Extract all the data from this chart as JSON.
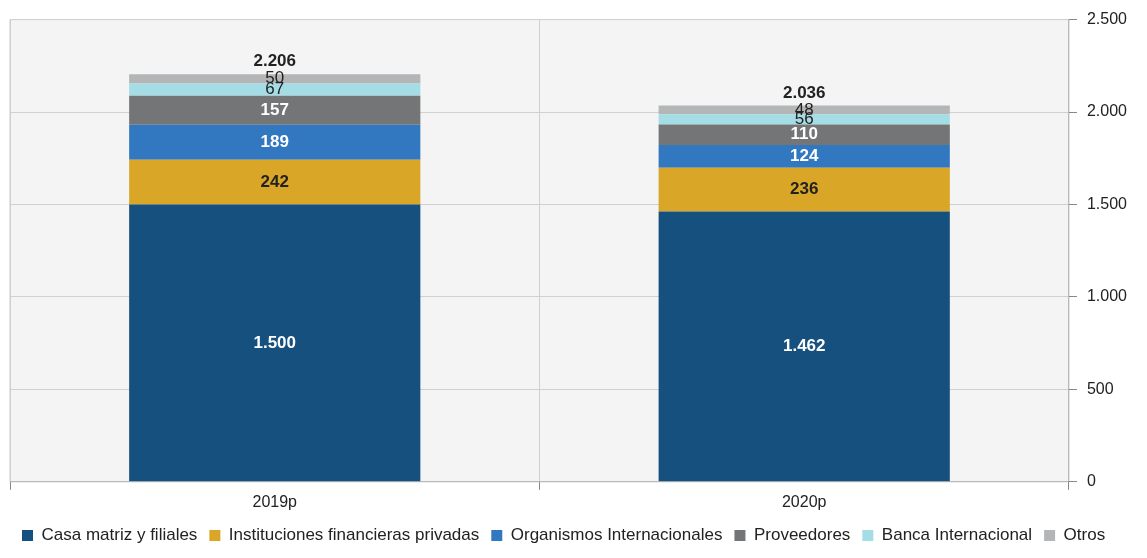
{
  "chart_data": {
    "type": "bar",
    "stacked": true,
    "categories": [
      "2019p",
      "2020p"
    ],
    "series": [
      {
        "name": "Casa matriz y filiales",
        "color": "#16507f",
        "values": [
          1500,
          1462
        ],
        "value_labels": [
          "1.500",
          "1.462"
        ]
      },
      {
        "name": "Instituciones financieras privadas",
        "color": "#d9a627",
        "values": [
          242,
          236
        ],
        "value_labels": [
          "242",
          "236"
        ]
      },
      {
        "name": "Organismos Internacionales",
        "color": "#3278c0",
        "values": [
          189,
          124
        ],
        "value_labels": [
          "189",
          "124"
        ]
      },
      {
        "name": "Proveedores",
        "color": "#737577",
        "values": [
          157,
          110
        ],
        "value_labels": [
          "157",
          "110"
        ]
      },
      {
        "name": "Banca Internacional",
        "color": "#a4dde6",
        "values": [
          67,
          56
        ],
        "value_labels": [
          "67",
          "56"
        ]
      },
      {
        "name": "Otros",
        "color": "#b3b5b6",
        "values": [
          50,
          48
        ],
        "value_labels": [
          "50",
          "48"
        ]
      }
    ],
    "totals": [
      "2.206",
      "2.036"
    ],
    "ylim": [
      0,
      2500
    ],
    "yticks": [
      {
        "value": 0,
        "label": "0"
      },
      {
        "value": 500,
        "label": "500"
      },
      {
        "value": 1000,
        "label": "1.000"
      },
      {
        "value": 1500,
        "label": "1.500"
      },
      {
        "value": 2000,
        "label": "2.000"
      },
      {
        "value": 2500,
        "label": "2.500"
      }
    ],
    "grid": true,
    "legend": "bottom"
  }
}
